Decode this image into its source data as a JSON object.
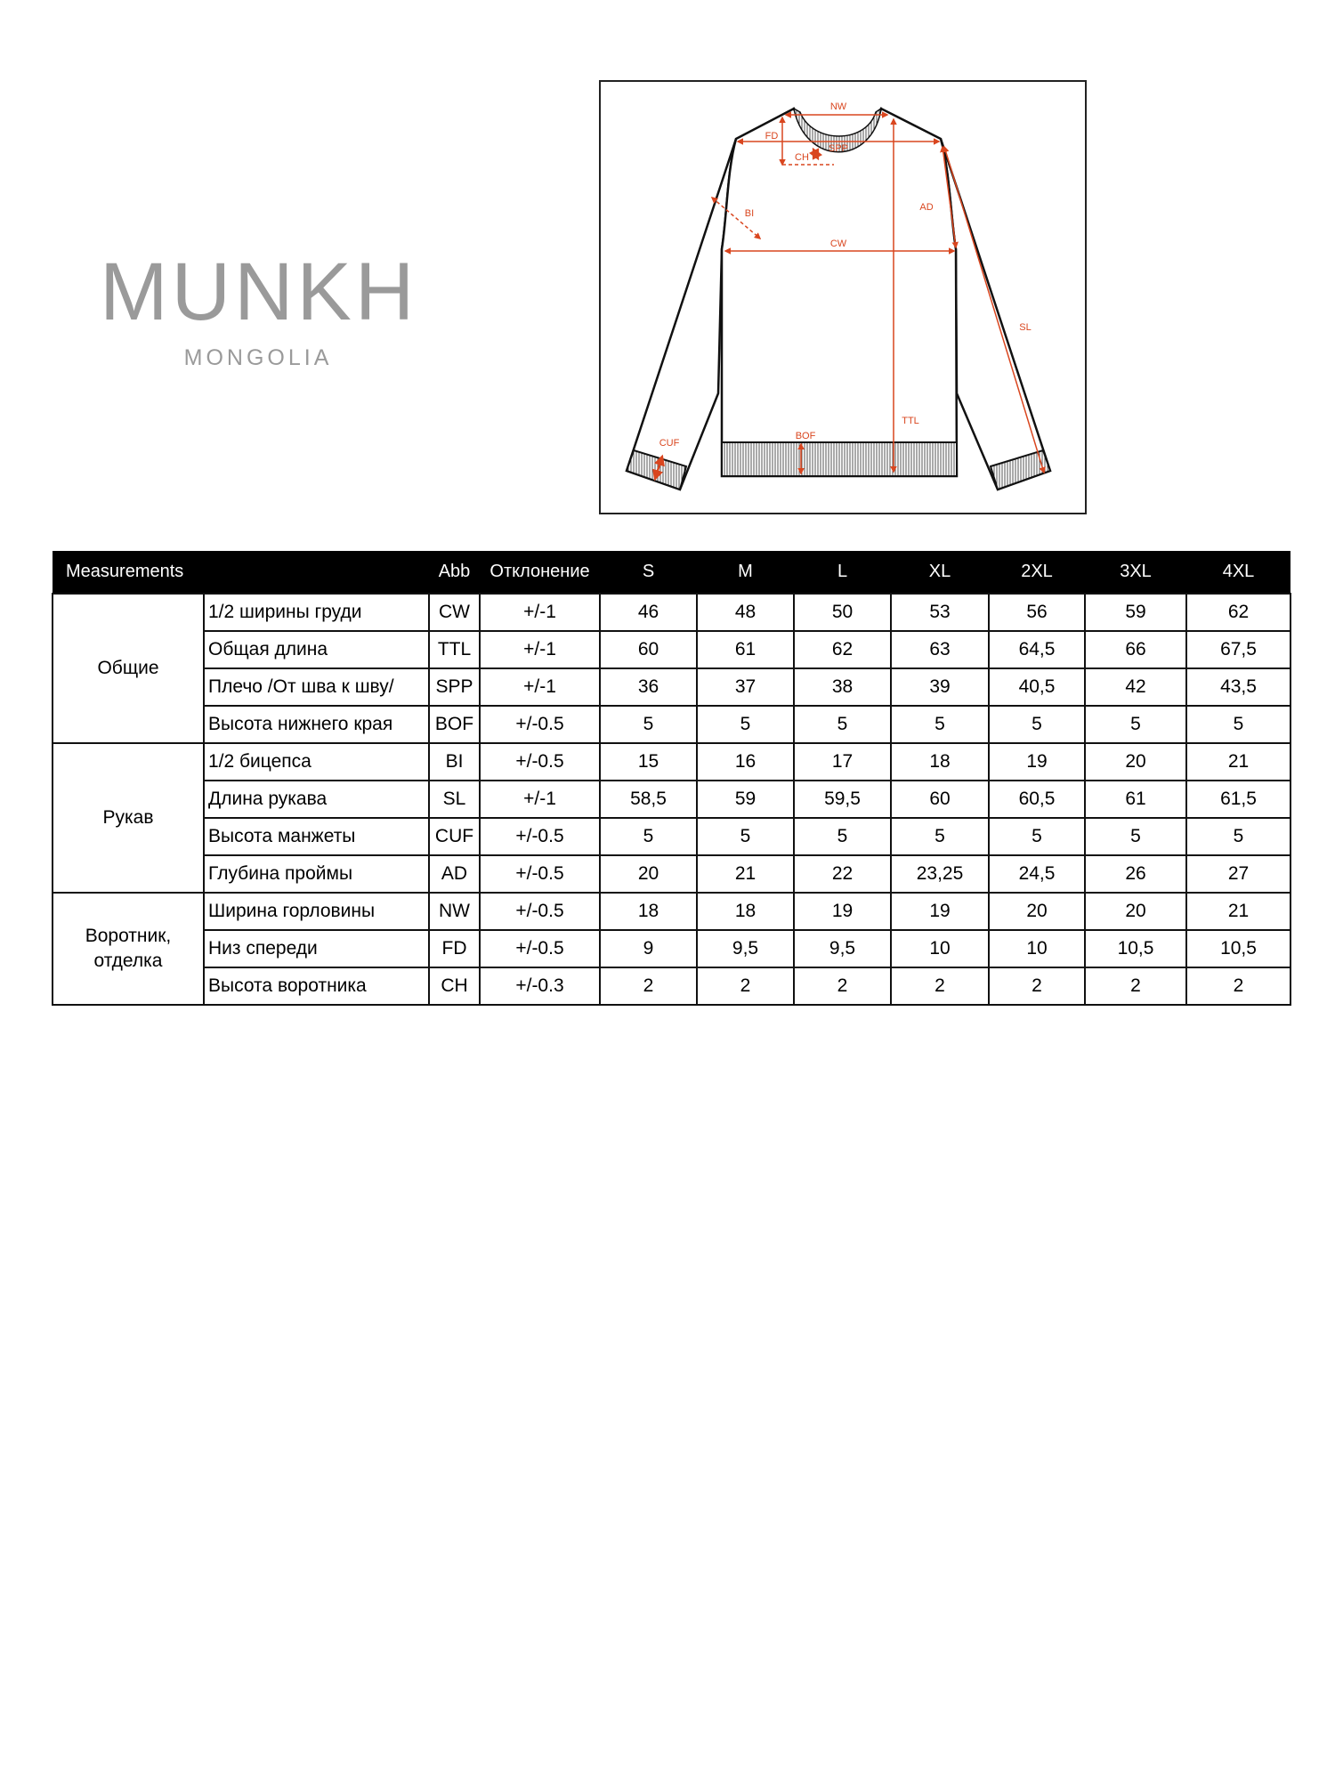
{
  "logo": {
    "main": "MUNKH",
    "sub": "MONGOLIA"
  },
  "diagram": {
    "labels": {
      "NW": "NW",
      "SPP": "SPP",
      "FD": "FD",
      "CH": "CH",
      "BI": "BI",
      "CW": "CW",
      "AD": "AD",
      "TTL": "TTL",
      "SL": "SL",
      "BOF": "BOF",
      "CUF": "CUF"
    },
    "annotation_color": "#d9461f"
  },
  "table": {
    "headers": {
      "measurements": "Measurements",
      "abb": "Abb",
      "tolerance": "Отклонение",
      "sizes": [
        "S",
        "M",
        "L",
        "XL",
        "2XL",
        "3XL",
        "4XL"
      ]
    },
    "groups": [
      {
        "label": "Общие",
        "rows": [
          {
            "name": "1/2 ширины груди",
            "abb": "CW",
            "tol": "+/-1",
            "values": [
              "46",
              "48",
              "50",
              "53",
              "56",
              "59",
              "62"
            ]
          },
          {
            "name": "Общая длина",
            "abb": "TTL",
            "tol": "+/-1",
            "values": [
              "60",
              "61",
              "62",
              "63",
              "64,5",
              "66",
              "67,5"
            ]
          },
          {
            "name": "Плечо /От шва к шву/",
            "abb": "SPP",
            "tol": "+/-1",
            "values": [
              "36",
              "37",
              "38",
              "39",
              "40,5",
              "42",
              "43,5"
            ]
          },
          {
            "name": "Высота нижнего края",
            "abb": "BOF",
            "tol": "+/-0.5",
            "values": [
              "5",
              "5",
              "5",
              "5",
              "5",
              "5",
              "5"
            ]
          }
        ]
      },
      {
        "label": "Рукав",
        "rows": [
          {
            "name": "1/2 бицепса",
            "abb": "BI",
            "tol": "+/-0.5",
            "values": [
              "15",
              "16",
              "17",
              "18",
              "19",
              "20",
              "21"
            ]
          },
          {
            "name": "Длина рукава",
            "abb": "SL",
            "tol": "+/-1",
            "values": [
              "58,5",
              "59",
              "59,5",
              "60",
              "60,5",
              "61",
              "61,5"
            ]
          },
          {
            "name": "Высота манжеты",
            "abb": "CUF",
            "tol": "+/-0.5",
            "values": [
              "5",
              "5",
              "5",
              "5",
              "5",
              "5",
              "5"
            ]
          },
          {
            "name": "Глубина проймы",
            "abb": "AD",
            "tol": "+/-0.5",
            "values": [
              "20",
              "21",
              "22",
              "23,25",
              "24,5",
              "26",
              "27"
            ]
          }
        ]
      },
      {
        "label": "Воротник,\nотделка",
        "rows": [
          {
            "name": "Ширина горловины",
            "abb": "NW",
            "tol": "+/-0.5",
            "values": [
              "18",
              "18",
              "19",
              "19",
              "20",
              "20",
              "21"
            ]
          },
          {
            "name": "Низ спереди",
            "abb": "FD",
            "tol": "+/-0.5",
            "values": [
              "9",
              "9,5",
              "9,5",
              "10",
              "10",
              "10,5",
              "10,5"
            ]
          },
          {
            "name": "Высота воротника",
            "abb": "CH",
            "tol": "+/-0.3",
            "values": [
              "2",
              "2",
              "2",
              "2",
              "2",
              "2",
              "2"
            ]
          }
        ]
      }
    ]
  }
}
